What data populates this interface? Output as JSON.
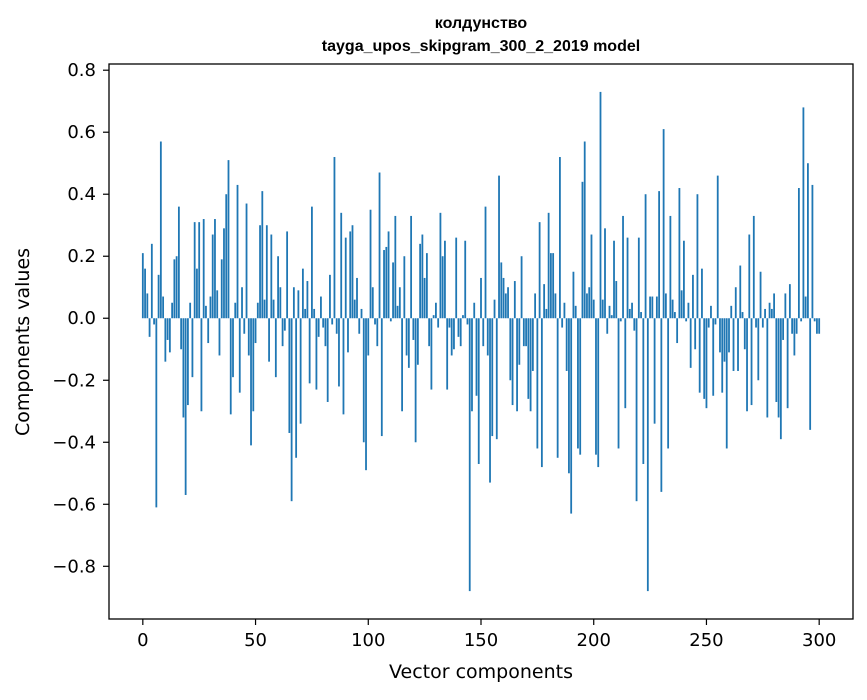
{
  "chart_data": {
    "type": "bar",
    "title": "колдунство",
    "subtitle": "tayga_upos_skipgram_300_2_2019 model",
    "xlabel": "Vector components",
    "ylabel": "Components values",
    "xlim": [
      -15,
      315
    ],
    "ylim": [
      -0.97,
      0.82
    ],
    "xticks": [
      0,
      50,
      100,
      150,
      200,
      250,
      300
    ],
    "xtick_labels": [
      "0",
      "50",
      "100",
      "150",
      "200",
      "250",
      "300"
    ],
    "yticks": [
      0.8,
      0.6,
      0.4,
      0.2,
      0.0,
      -0.2,
      -0.4,
      -0.6,
      -0.8
    ],
    "ytick_labels": [
      "0.8",
      "0.6",
      "0.4",
      "0.2",
      "0.0",
      "−0.2",
      "−0.4",
      "−0.6",
      "−0.8"
    ],
    "grid": false,
    "legend": "none",
    "bar_color": "#1f77b4",
    "values": [
      0.21,
      0.16,
      0.08,
      -0.06,
      0.24,
      -0.02,
      -0.61,
      0.14,
      0.57,
      0.07,
      -0.14,
      -0.07,
      -0.11,
      0.05,
      0.19,
      0.2,
      0.36,
      -0.1,
      -0.32,
      -0.57,
      -0.28,
      0.05,
      -0.19,
      0.31,
      0.16,
      0.31,
      -0.3,
      0.32,
      0.04,
      -0.08,
      0.07,
      0.27,
      0.32,
      0.09,
      -0.12,
      0.19,
      0.29,
      0.4,
      0.51,
      -0.31,
      -0.19,
      0.05,
      0.43,
      -0.24,
      0.1,
      -0.05,
      0.37,
      -0.12,
      -0.41,
      -0.3,
      -0.08,
      0.05,
      0.3,
      0.41,
      0.06,
      0.3,
      -0.14,
      0.27,
      0.06,
      -0.19,
      0.2,
      0.1,
      -0.09,
      -0.04,
      0.28,
      -0.37,
      -0.59,
      0.1,
      -0.45,
      0.09,
      -0.34,
      0.16,
      0.03,
      0.12,
      -0.21,
      0.36,
      0.03,
      -0.23,
      -0.06,
      0.07,
      -0.03,
      -0.09,
      -0.27,
      0.14,
      -0.02,
      0.52,
      -0.05,
      -0.22,
      0.34,
      -0.31,
      0.26,
      -0.11,
      0.28,
      0.3,
      0.06,
      0.13,
      -0.05,
      0.03,
      -0.4,
      -0.49,
      -0.12,
      0.35,
      0.1,
      -0.02,
      -0.09,
      0.47,
      -0.38,
      0.22,
      0.23,
      0.28,
      -0.01,
      0.18,
      0.33,
      0.04,
      0.1,
      -0.3,
      0.2,
      -0.12,
      -0.16,
      0.33,
      -0.07,
      -0.4,
      -0.15,
      0.24,
      0.27,
      0.13,
      0.21,
      -0.09,
      -0.23,
      0.01,
      0.05,
      -0.03,
      0.34,
      0.2,
      0.25,
      -0.23,
      -0.03,
      -0.12,
      -0.1,
      0.26,
      -0.06,
      -0.09,
      0.01,
      0.25,
      -0.02,
      -0.88,
      -0.3,
      0.05,
      -0.25,
      -0.47,
      0.13,
      -0.09,
      0.36,
      -0.12,
      -0.53,
      -0.38,
      0.06,
      -0.39,
      0.46,
      0.18,
      0.13,
      0.08,
      0.1,
      -0.2,
      -0.28,
      0.12,
      -0.3,
      -0.15,
      0.2,
      -0.09,
      -0.09,
      -0.26,
      -0.3,
      -0.17,
      0.08,
      -0.42,
      0.31,
      -0.48,
      0.11,
      0.03,
      0.34,
      0.21,
      0.21,
      0.08,
      -0.45,
      0.52,
      -0.03,
      0.05,
      -0.17,
      -0.5,
      -0.63,
      0.15,
      0.04,
      -0.42,
      -0.44,
      0.44,
      0.57,
      0.08,
      0.1,
      0.27,
      0.06,
      -0.44,
      -0.48,
      0.73,
      0.06,
      0.29,
      -0.05,
      0.04,
      0.01,
      0.25,
      0.12,
      -0.42,
      -0.01,
      0.33,
      -0.29,
      0.26,
      0.03,
      0.05,
      -0.04,
      -0.59,
      0.26,
      0.02,
      -0.47,
      0.4,
      -0.88,
      0.07,
      0.07,
      -0.34,
      0.07,
      0.41,
      -0.56,
      0.61,
      0.08,
      -0.42,
      0.33,
      0.06,
      0.02,
      -0.08,
      0.42,
      0.09,
      0.25,
      -0.01,
      0.05,
      -0.16,
      0.14,
      -0.1,
      0.4,
      -0.24,
      0.16,
      -0.26,
      -0.29,
      -0.03,
      0.04,
      -0.25,
      -0.02,
      0.46,
      -0.11,
      -0.24,
      -0.14,
      -0.42,
      -0.11,
      0.04,
      -0.17,
      0.1,
      -0.17,
      0.17,
      0.02,
      -0.1,
      -0.3,
      0.27,
      -0.28,
      0.33,
      -0.03,
      -0.2,
      0.15,
      -0.03,
      0.03,
      -0.32,
      0.05,
      0.03,
      0.08,
      -0.27,
      -0.32,
      -0.39,
      -0.07,
      0.08,
      -0.29,
      0.11,
      -0.05,
      -0.12,
      -0.05,
      0.42,
      -0.01,
      0.68,
      0.07,
      0.5,
      -0.36,
      0.43,
      -0.01,
      -0.05,
      -0.05
    ]
  }
}
